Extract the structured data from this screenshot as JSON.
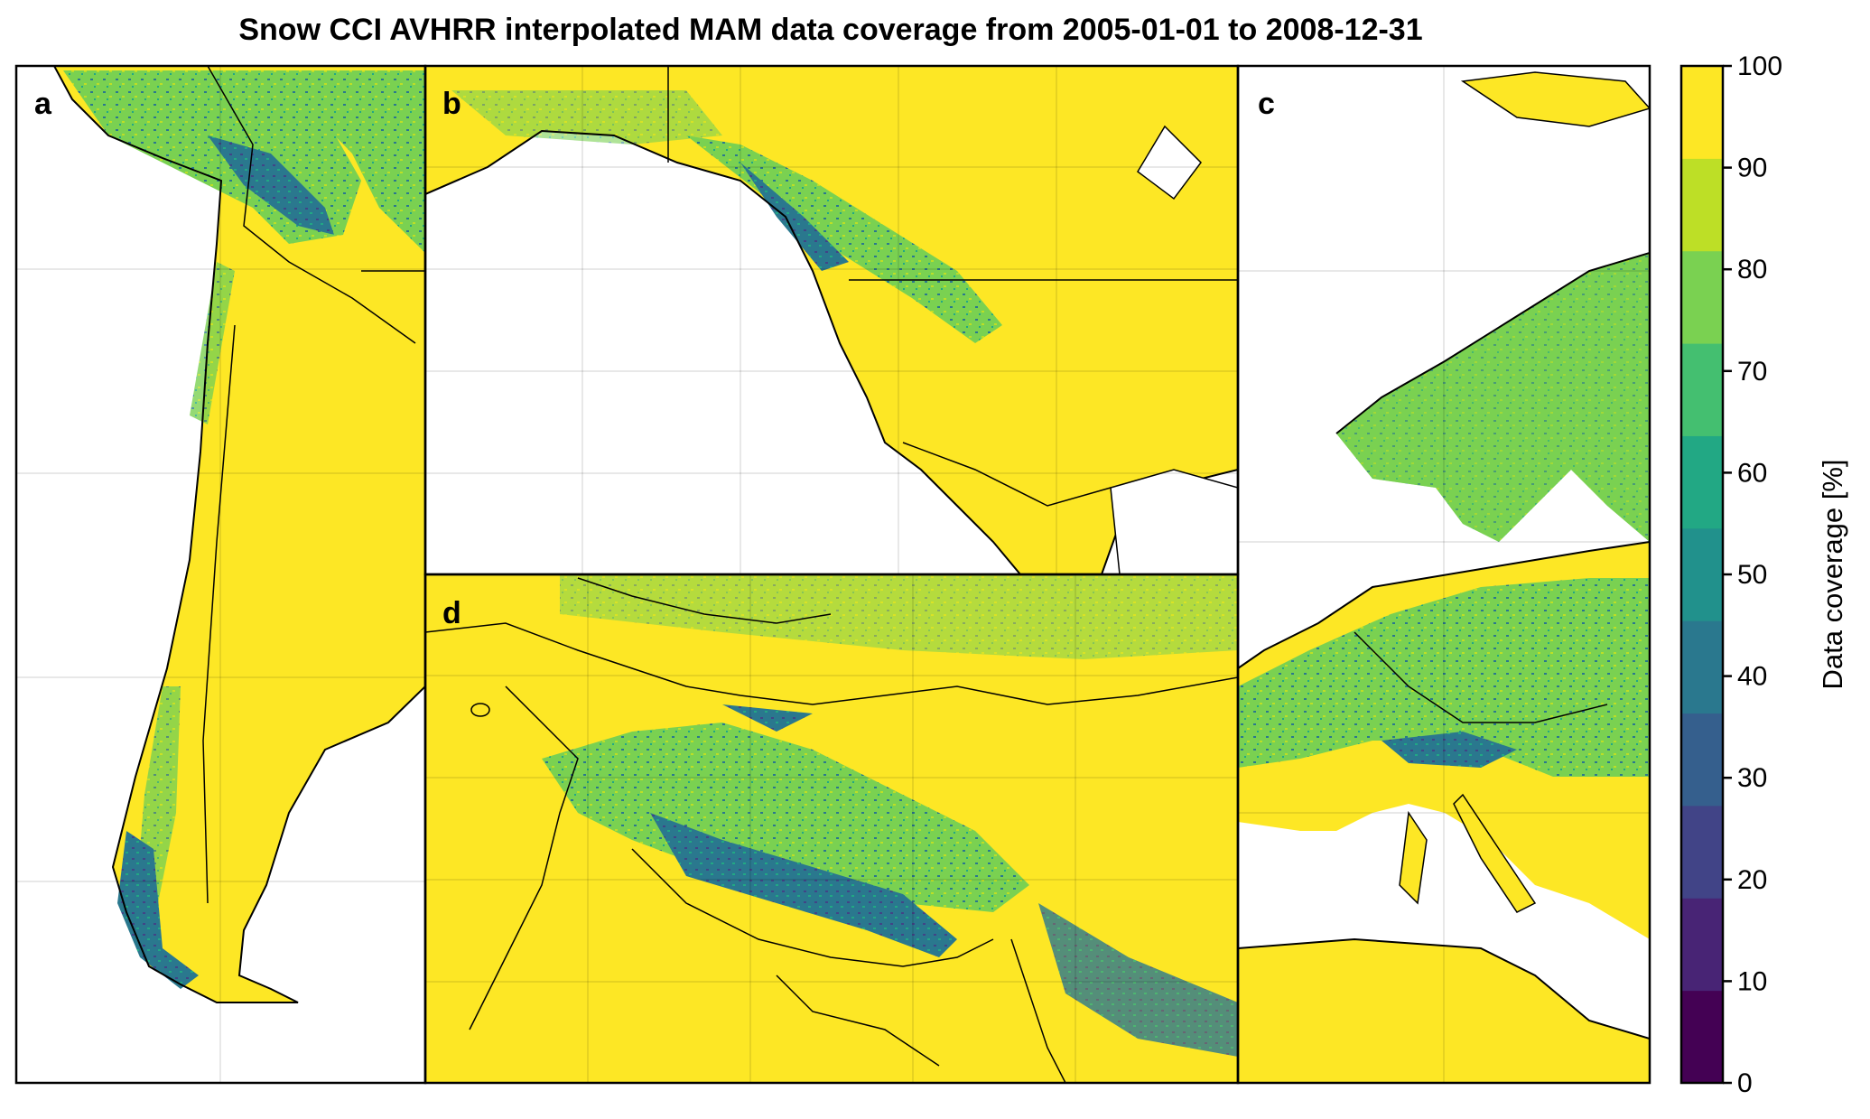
{
  "title": "Snow CCI AVHRR interpolated MAM data coverage from 2005-01-01 to 2008-12-31",
  "panels": [
    {
      "label": "a"
    },
    {
      "label": "b"
    },
    {
      "label": "c"
    },
    {
      "label": "d"
    }
  ],
  "colorbar": {
    "label": "Data coverage [%]",
    "ticks": [
      "0",
      "10",
      "20",
      "30",
      "40",
      "50",
      "60",
      "70",
      "80",
      "90",
      "100"
    ],
    "colors": [
      "#440154",
      "#482475",
      "#414487",
      "#355f8d",
      "#2a788e",
      "#21918c",
      "#22a884",
      "#44bf70",
      "#7ad151",
      "#bddf26",
      "#fde725"
    ]
  },
  "palette": {
    "land_high": "#fde725",
    "land_mid": "#7ad151",
    "land_low": "#2a788e",
    "land_vlow": "#414487",
    "ocean": "#ffffff",
    "border": "#000000"
  }
}
